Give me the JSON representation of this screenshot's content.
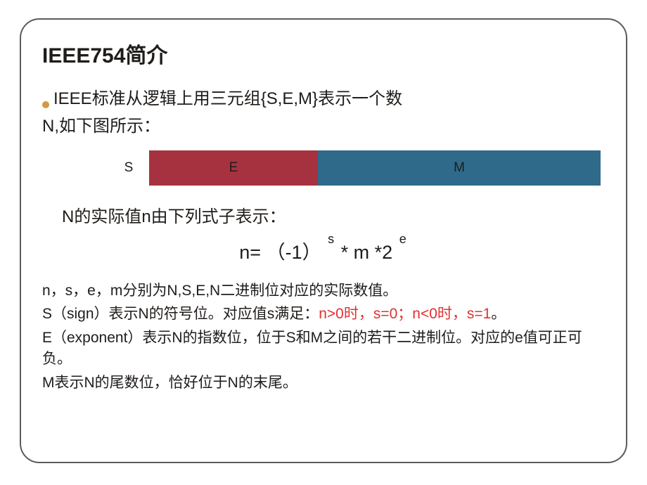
{
  "title": {
    "text": "IEEE754简介",
    "fontsize": 30,
    "fontweight": "bold"
  },
  "bullet": {
    "line1": "IEEE标准从逻辑上用三元组{S,E,M}表示一个数",
    "line2": "N,如下图所示：",
    "fontsize": 24
  },
  "sem": {
    "S": "S",
    "E": "E",
    "M": "M",
    "label_fontsize": 19,
    "e_bg": "#a7323f",
    "m_bg": "#2f6a8a",
    "e_text_color": "#1f1c1a",
    "m_text_color": "#1f1c1a"
  },
  "intro2": {
    "text": "N的实际值n由下列式子表示：",
    "fontsize": 24
  },
  "formula": {
    "pre": "n= ",
    "neg": "（-1）",
    "sup_s": "s",
    "mid": " * m *2",
    "sup_e": "e",
    "fontsize": 27,
    "sup_fontsize": 18
  },
  "desc": {
    "fontsize": 21,
    "red_color": "#e03030",
    "l1": "n，s，e，m分别为N,S,E,N二进制位对应的实际数值。",
    "l2a": "S（sign）表示N的符号位。对应值s满足：",
    "l2b": "n>0时，s=0；n<0时，s=1",
    "l2c": "。",
    "l3": "E（exponent）表示N的指数位，位于S和M之间的若干二进制位。对应的e值可正可负。",
    "l4": "M表示N的尾数位，恰好位于N的末尾。"
  }
}
